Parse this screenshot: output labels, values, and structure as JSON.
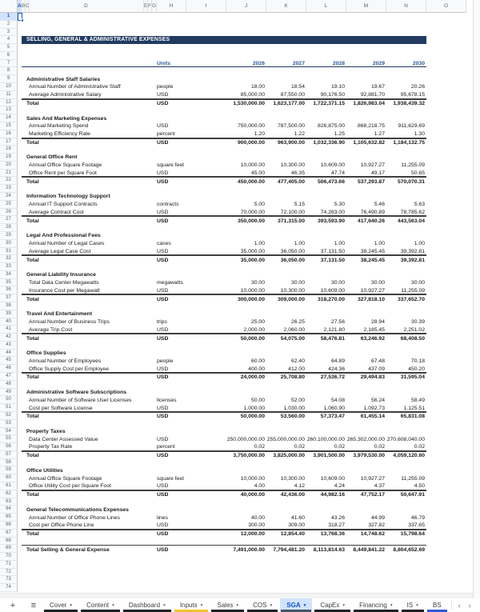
{
  "colors": {
    "title_band": "#203a60",
    "header_blue": "#2d5b96",
    "header_underline": "#1f3864",
    "selection_blue": "#0b57d0",
    "active_tab_bg": "#d3e3fd"
  },
  "grid": {
    "columns": [
      "A",
      "B",
      "C",
      "D",
      "E",
      "F",
      "G",
      "H",
      "I",
      "J",
      "K",
      "L",
      "M",
      "N",
      "O"
    ],
    "row_count": 74,
    "selected_cell": "A1"
  },
  "sheet": {
    "title": "SELLING, GENERAL & ADMINISTRATIVE EXPENSES",
    "units_label": "Units",
    "years": [
      "2026",
      "2027",
      "2028",
      "2029",
      "2030"
    ],
    "sections": [
      {
        "name": "Administrative Staff Salaries",
        "rows": [
          {
            "label": "Annual Number of Administrative Staff",
            "unit": "people",
            "values": [
              "18.00",
              "18.54",
              "19.10",
              "19.67",
              "20.26"
            ]
          },
          {
            "label": "Average Administrative Salary",
            "unit": "USD",
            "values": [
              "85,000.00",
              "87,550.00",
              "90,176.50",
              "92,881.70",
              "95,678.15"
            ]
          }
        ],
        "total": {
          "label": "Total",
          "unit": "USD",
          "values": [
            "1,530,000.00",
            "1,623,177.00",
            "1,722,371.15",
            "1,826,983.04",
            "1,938,439.32"
          ]
        }
      },
      {
        "name": "Sales And Marketing Expenses",
        "rows": [
          {
            "label": "Annual Marketing Spend",
            "unit": "USD",
            "values": [
              "750,000.00",
              "787,500.00",
              "826,875.00",
              "868,218.75",
              "911,629.69"
            ]
          },
          {
            "label": "Marketing Efficiency Rate",
            "unit": "percent",
            "values": [
              "1.20",
              "1.22",
              "1.25",
              "1.27",
              "1.30"
            ]
          }
        ],
        "total": {
          "label": "Total",
          "unit": "USD",
          "values": [
            "900,000.00",
            "963,900.00",
            "1,032,336.90",
            "1,105,632.82",
            "1,184,132.75"
          ]
        }
      },
      {
        "name": "General Office Rent",
        "rows": [
          {
            "label": "Annual Office Square Footage",
            "unit": "square feet",
            "values": [
              "10,000.00",
              "10,300.00",
              "10,609.00",
              "10,927.27",
              "11,255.09"
            ]
          },
          {
            "label": "Office Rent per Square Foot",
            "unit": "USD",
            "values": [
              "45.00",
              "46.35",
              "47.74",
              "49.17",
              "50.65"
            ]
          }
        ],
        "total": {
          "label": "Total",
          "unit": "USD",
          "values": [
            "450,000.00",
            "477,405.00",
            "506,473.66",
            "537,293.87",
            "570,070.31"
          ]
        }
      },
      {
        "name": "Information Technology Support",
        "rows": [
          {
            "label": "Annual IT Support Contracts",
            "unit": "contracts",
            "values": [
              "5.00",
              "5.15",
              "5.30",
              "5.46",
              "5.63"
            ]
          },
          {
            "label": "Average Contract Cost",
            "unit": "USD",
            "values": [
              "70,000.00",
              "72,100.00",
              "74,263.00",
              "76,490.89",
              "78,785.62"
            ]
          }
        ],
        "total": {
          "label": "Total",
          "unit": "USD",
          "values": [
            "350,000.00",
            "371,315.00",
            "393,593.90",
            "417,640.26",
            "443,563.04"
          ]
        }
      },
      {
        "name": "Legal And Professional Fees",
        "rows": [
          {
            "label": "Annual Number of Legal Cases",
            "unit": "cases",
            "values": [
              "1.00",
              "1.00",
              "1.00",
              "1.00",
              "1.00"
            ]
          },
          {
            "label": "Average Legal Case Cost",
            "unit": "USD",
            "values": [
              "35,000.00",
              "36,050.00",
              "37,131.50",
              "38,245.45",
              "39,392.81"
            ]
          }
        ],
        "total": {
          "label": "Total",
          "unit": "USD",
          "values": [
            "35,000.00",
            "36,050.00",
            "37,131.50",
            "38,245.45",
            "39,392.81"
          ]
        }
      },
      {
        "name": "General Liability Insurance",
        "rows": [
          {
            "label": "Total Data Center Megawatts",
            "unit": "megawatts",
            "values": [
              "30.00",
              "30.00",
              "30.00",
              "30.00",
              "30.00"
            ]
          },
          {
            "label": "Insurance Cost per Megawatt",
            "unit": "USD",
            "values": [
              "10,000.00",
              "10,300.00",
              "10,609.00",
              "10,927.27",
              "11,255.09"
            ]
          }
        ],
        "total": {
          "label": "Total",
          "unit": "USD",
          "values": [
            "300,000.00",
            "309,000.00",
            "318,270.00",
            "327,818.10",
            "337,652.70"
          ]
        }
      },
      {
        "name": "Travel And Entertainment",
        "rows": [
          {
            "label": "Annual Number of Business Trips",
            "unit": "trips",
            "values": [
              "25.00",
              "26.25",
              "27.56",
              "28.94",
              "30.39"
            ]
          },
          {
            "label": "Average Trip Cost",
            "unit": "USD",
            "values": [
              "2,000.00",
              "2,060.00",
              "2,121.80",
              "2,185.45",
              "2,251.02"
            ]
          }
        ],
        "total": {
          "label": "Total",
          "unit": "USD",
          "values": [
            "50,000.00",
            "54,075.00",
            "58,476.81",
            "63,246.92",
            "68,408.50"
          ]
        }
      },
      {
        "name": "Office Supplies",
        "rows": [
          {
            "label": "Annual Number of Employees",
            "unit": "people",
            "values": [
              "60.00",
              "62.40",
              "64.89",
              "67.48",
              "70.18"
            ]
          },
          {
            "label": "Office Supply Cost per Employee",
            "unit": "USD",
            "values": [
              "400.00",
              "412.00",
              "424.36",
              "437.09",
              "450.20"
            ]
          }
        ],
        "total": {
          "label": "Total",
          "unit": "USD",
          "values": [
            "24,000.00",
            "25,708.80",
            "27,536.72",
            "29,494.83",
            "31,595.04"
          ]
        }
      },
      {
        "name": "Administrative Software Subscriptions",
        "rows": [
          {
            "label": "Annual Number of Software User Licenses",
            "unit": "licenses",
            "values": [
              "50.00",
              "52.00",
              "54.08",
              "56.24",
              "58.49"
            ]
          },
          {
            "label": "Cost per Software License",
            "unit": "USD",
            "values": [
              "1,000.00",
              "1,030.00",
              "1,060.90",
              "1,092.73",
              "1,125.51"
            ]
          }
        ],
        "total": {
          "label": "Total",
          "unit": "USD",
          "values": [
            "50,000.00",
            "53,560.00",
            "57,373.47",
            "61,455.14",
            "65,831.08"
          ]
        }
      },
      {
        "name": "Property Taxes",
        "rows": [
          {
            "label": "Data Center Assessed Value",
            "unit": "USD",
            "values": [
              "250,000,000.00",
              "255,000,000.00",
              "260,100,000.00",
              "265,302,000.00",
              "270,608,040.00"
            ]
          },
          {
            "label": "Property Tax Rate",
            "unit": "percent",
            "values": [
              "0.02",
              "0.02",
              "0.02",
              "0.02",
              "0.02"
            ]
          }
        ],
        "total": {
          "label": "Total",
          "unit": "USD",
          "values": [
            "3,750,000.00",
            "3,825,000.00",
            "3,901,500.00",
            "3,979,530.00",
            "4,059,120.60"
          ]
        }
      },
      {
        "name": "Office Utilities",
        "rows": [
          {
            "label": "Annual Office Square Footage",
            "unit": "square feet",
            "values": [
              "10,000.00",
              "10,300.00",
              "10,609.00",
              "10,927.27",
              "11,255.09"
            ]
          },
          {
            "label": "Office Utility Cost per Square Foot",
            "unit": "USD",
            "values": [
              "4.00",
              "4.12",
              "4.24",
              "4.37",
              "4.50"
            ]
          }
        ],
        "total": {
          "label": "Total",
          "unit": "USD",
          "values": [
            "40,000.00",
            "42,436.00",
            "44,982.16",
            "47,752.17",
            "50,647.91"
          ]
        }
      },
      {
        "name": "General Telecommunications Expenses",
        "rows": [
          {
            "label": "Annual Number of Office Phone Lines",
            "unit": "lines",
            "values": [
              "40.00",
              "41.60",
              "43.26",
              "44.99",
              "46.79"
            ]
          },
          {
            "label": "Cost per Office Phone Line",
            "unit": "USD",
            "values": [
              "300.00",
              "309.00",
              "318.27",
              "327.82",
              "337.65"
            ]
          }
        ],
        "total": {
          "label": "Total",
          "unit": "USD",
          "values": [
            "12,000.00",
            "12,854.40",
            "13,768.36",
            "14,748.62",
            "15,798.64"
          ]
        }
      }
    ],
    "grand_total": {
      "label": "Total Selling & General Expense",
      "unit": "USD",
      "values": [
        "7,491,000.00",
        "7,794,481.20",
        "8,113,814.63",
        "8,449,841.22",
        "8,804,652.69"
      ]
    }
  },
  "tabbar": {
    "icons": {
      "add": "+",
      "all_sheets": "≡",
      "arrow": "▾",
      "prev": "‹",
      "next": "›"
    },
    "tabs": [
      {
        "label": "Cover",
        "color": "#202124",
        "arrow": true,
        "active": false
      },
      {
        "label": "Content",
        "color": "#202124",
        "arrow": true,
        "active": false
      },
      {
        "label": "Dashboard",
        "color": "#202124",
        "arrow": true,
        "active": false
      },
      {
        "label": "Inputs",
        "color": "#f1c232",
        "arrow": true,
        "active": false
      },
      {
        "label": "Sales",
        "color": "#202124",
        "arrow": true,
        "active": false
      },
      {
        "label": "COS",
        "color": "#202124",
        "arrow": true,
        "active": false
      },
      {
        "label": "SGA",
        "color": "#44546a",
        "arrow": true,
        "active": true
      },
      {
        "label": "CapEx",
        "color": "#202124",
        "arrow": true,
        "active": false
      },
      {
        "label": "Financing",
        "color": "#202124",
        "arrow": true,
        "active": false
      },
      {
        "label": "IS",
        "color": "#202124",
        "arrow": true,
        "active": false
      },
      {
        "label": "BS",
        "color": "#2e5bd8",
        "arrow": false,
        "active": false
      }
    ]
  }
}
